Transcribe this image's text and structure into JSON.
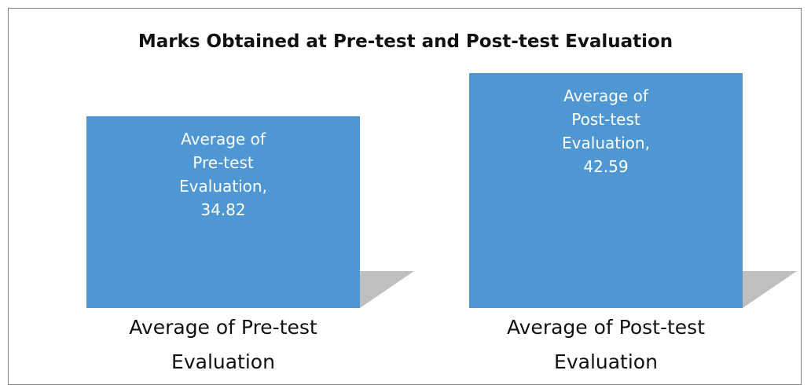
{
  "chart_data": {
    "type": "bar",
    "title": "Marks Obtained at Pre-test and Post-test Evaluation",
    "categories": [
      "Average of Pre-test Evaluation",
      "Average of Post-test Evaluation"
    ],
    "values": [
      34.82,
      42.59
    ],
    "value_labels": [
      "Average of Pre-test Evaluation, 34.82",
      "Average of Post-test Evaluation, 42.59"
    ],
    "color": "#4f97d3"
  }
}
